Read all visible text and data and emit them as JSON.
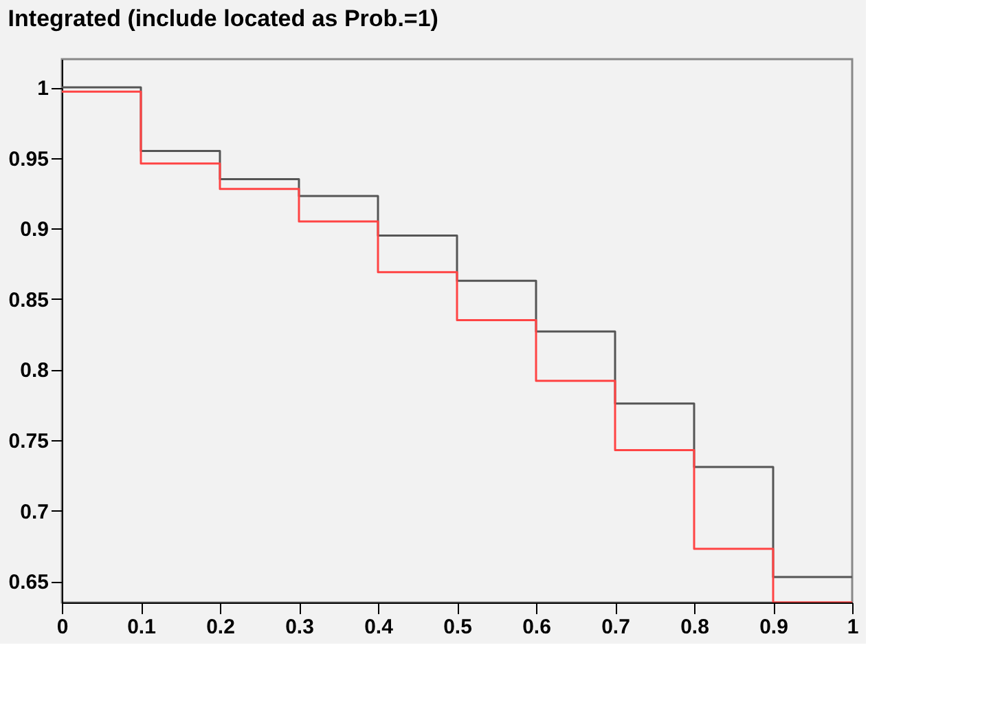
{
  "chart_data": {
    "type": "histogram",
    "title": "Integrated (include located as Prob.=1)",
    "bins": [
      0,
      0.1,
      0.2,
      0.3,
      0.4,
      0.5,
      0.6,
      0.7,
      0.8,
      0.9,
      1
    ],
    "series": [
      {
        "color": "#555555",
        "values": [
          1.0,
          0.955,
          0.935,
          0.923,
          0.895,
          0.863,
          0.827,
          0.776,
          0.731,
          0.653
        ]
      },
      {
        "color": "#ff4444",
        "values": [
          0.997,
          0.946,
          0.928,
          0.905,
          0.869,
          0.835,
          0.792,
          0.743,
          0.673,
          0.635
        ]
      }
    ],
    "xlim": [
      0,
      1
    ],
    "xticks": [
      0,
      0.1,
      0.2,
      0.3,
      0.4,
      0.5,
      0.6,
      0.7,
      0.8,
      0.9,
      1
    ],
    "ylim": [
      0.635,
      1.02
    ],
    "yticks": [
      0.65,
      0.7,
      0.75,
      0.8,
      0.85,
      0.9,
      0.95,
      1
    ],
    "grid": false
  }
}
